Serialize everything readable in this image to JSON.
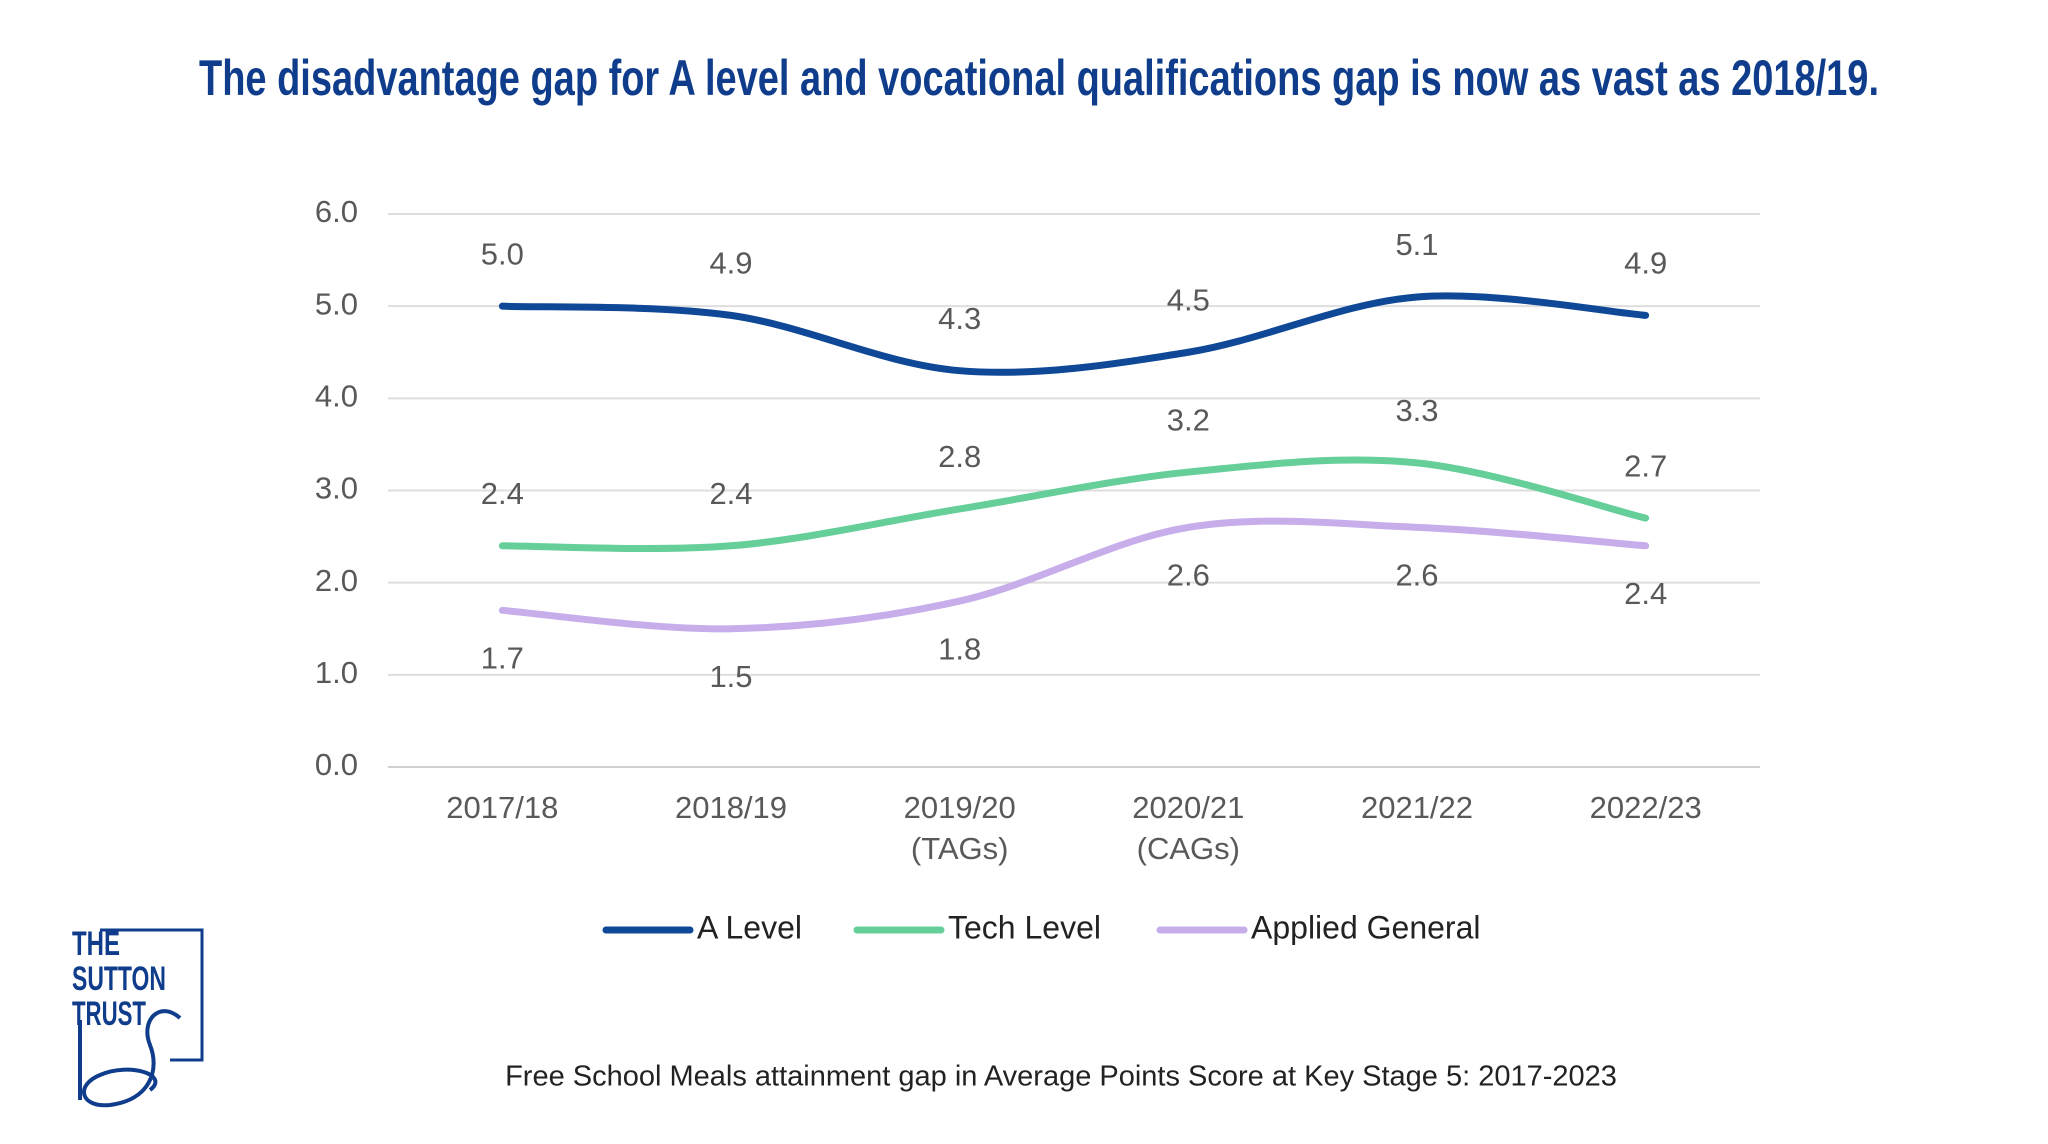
{
  "chart_data": {
    "type": "line",
    "title": "The disadvantage gap for A level and vocational qualifications gap is now as vast as 2018/19.",
    "caption": "Free School Meals attainment gap in Average Points Score at Key Stage 5: 2017-2023",
    "categories": [
      "2017/18",
      "2018/19",
      "2019/20 (TAGs)",
      "2020/21 (CAGs)",
      "2021/22",
      "2022/23"
    ],
    "series": [
      {
        "name": "A Level",
        "color": "#0f4896",
        "values": [
          5.0,
          4.9,
          4.3,
          4.5,
          5.1,
          4.9
        ],
        "value_labels": [
          "5.0",
          "4.9",
          "4.3",
          "4.5",
          "5.1",
          "4.9"
        ],
        "label_position": "above"
      },
      {
        "name": "Tech Level",
        "color": "#66cf99",
        "values": [
          2.4,
          2.4,
          2.8,
          3.2,
          3.3,
          2.7
        ],
        "value_labels": [
          "2.4",
          "2.4",
          "2.8",
          "3.2",
          "3.3",
          "2.7"
        ],
        "label_position": "above"
      },
      {
        "name": "Applied General",
        "color": "#c8adeb",
        "values": [
          1.7,
          1.5,
          1.8,
          2.6,
          2.6,
          2.4
        ],
        "value_labels": [
          "1.7",
          "1.5",
          "1.8",
          "2.6",
          "2.6",
          "2.4"
        ],
        "label_position": "below"
      }
    ],
    "ylim": [
      0,
      6
    ],
    "yticks": [
      {
        "value": 0,
        "label": "0.0"
      },
      {
        "value": 1,
        "label": "1.0"
      },
      {
        "value": 2,
        "label": "2.0"
      },
      {
        "value": 3,
        "label": "3.0"
      },
      {
        "value": 4,
        "label": "4.0"
      },
      {
        "value": 5,
        "label": "5.0"
      },
      {
        "value": 6,
        "label": "6.0"
      }
    ],
    "grid": true,
    "smooth": true,
    "legend": "bottom"
  },
  "logo": {
    "lines": [
      "THE",
      "SUTTON",
      "TRUST"
    ]
  }
}
